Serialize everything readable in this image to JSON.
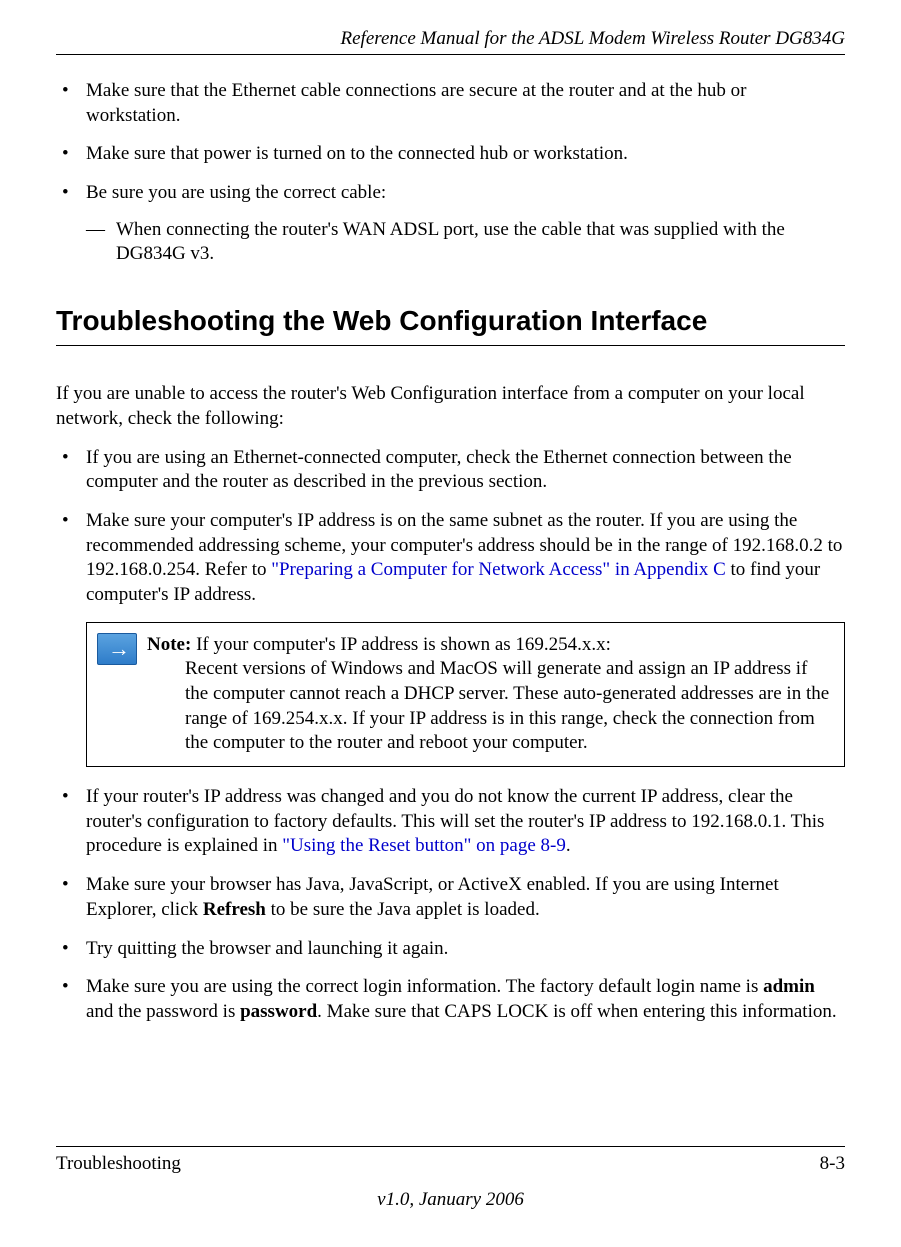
{
  "header": {
    "title": "Reference Manual for the ADSL Modem Wireless Router DG834G"
  },
  "top_bullets": [
    {
      "text": "Make sure that the Ethernet cable connections are secure at the router and at the hub or workstation."
    },
    {
      "text": "Make sure that power is turned on to the connected hub or workstation."
    },
    {
      "text": "Be sure you are using the correct cable:"
    }
  ],
  "top_dash": "When connecting the router's WAN ADSL port, use the cable that was supplied with the DG834G v3.",
  "section": {
    "heading": "Troubleshooting the Web Configuration Interface",
    "intro": "If you are unable to access the router's Web Configuration interface from a computer on your local network, check the following:"
  },
  "mid_bullets": {
    "b1": "If you are using an Ethernet-connected computer, check the Ethernet connection between the computer and the router as described in the previous section.",
    "b2_a": "Make sure your computer's IP address is on the same subnet as the router. If you are using the recommended addressing scheme, your computer's address should be in the range of 192.168.0.2 to 192.168.0.254. Refer to ",
    "b2_link": "\"Preparing a Computer for Network Access\" in Appendix C",
    "b2_c": " to find your computer's IP address."
  },
  "note": {
    "label": "Note: ",
    "line1": "If your computer's IP address is shown as 169.254.x.x:",
    "body": "Recent versions of Windows and MacOS will generate and assign an IP address if the computer cannot reach a DHCP server. These auto-generated addresses are in the range of 169.254.x.x. If your IP address is in this range, check the connection from the computer to the router and reboot your computer."
  },
  "lower_bullets": {
    "b3_a": "If your router's IP address was changed and you do not know the current IP address, clear the router's configuration to factory defaults. This will set the router's IP address to 192.168.0.1. This procedure is explained in ",
    "b3_link": "\"Using the Reset button\" on page 8-9",
    "b3_c": ".",
    "b4_a": "Make sure your browser has Java, JavaScript, or ActiveX enabled. If you are using Internet Explorer, click ",
    "b4_bold": "Refresh",
    "b4_c": " to be sure the Java applet is loaded.",
    "b5": "Try quitting the browser and launching it again.",
    "b6_a": "Make sure you are using the correct login information. The factory default login name is ",
    "b6_bold1": "admin",
    "b6_b": " and the password is ",
    "b6_bold2": "password",
    "b6_c": ". Make sure that CAPS LOCK is off when entering this information."
  },
  "footer": {
    "left": "Troubleshooting",
    "right": "8-3",
    "version": "v1.0, January 2006"
  }
}
